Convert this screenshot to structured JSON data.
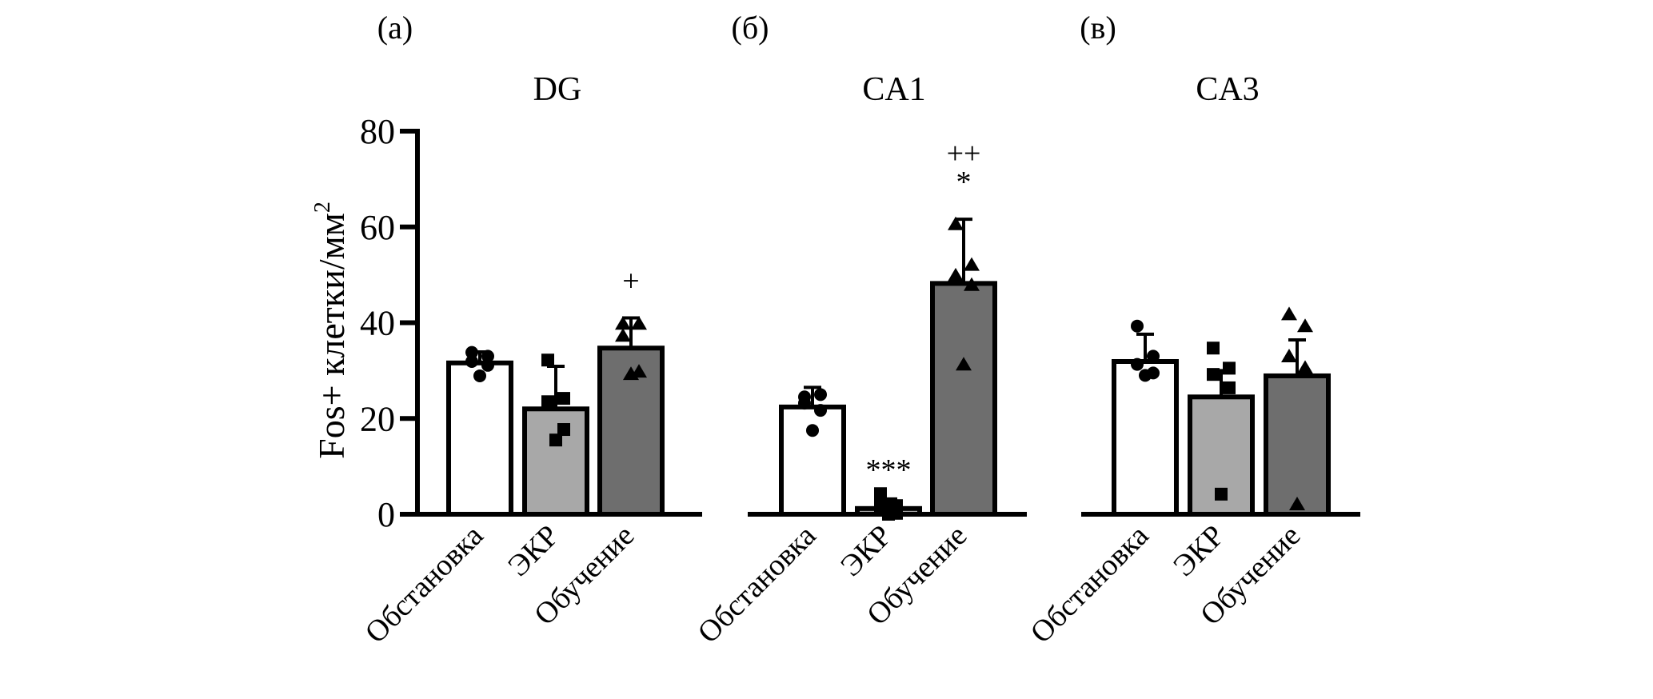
{
  "chart_data": {
    "type": "bar",
    "ylabel": "Fos+ клетки/мм²",
    "ylabel_main": "Fos+ клетки/мм",
    "ylabel_sup": "2",
    "ylim": [
      0,
      80
    ],
    "yticks": [
      0,
      20,
      40,
      60,
      80
    ],
    "categories": [
      "Обстановка",
      "ЭКР",
      "Обучение"
    ],
    "bar_colors": [
      "#ffffff",
      "#a8a8a8",
      "#6e6e6e"
    ],
    "point_markers": [
      "circle",
      "square",
      "triangle"
    ],
    "panels": [
      {
        "letter": "(а)",
        "title": "DG",
        "values": [
          31.6,
          22.0,
          34.7
        ],
        "error_upper": [
          33.9,
          30.9,
          41.0
        ],
        "points": [
          [
            33.8,
            33.0,
            31.9,
            31.1,
            28.9
          ],
          [
            32.2,
            24.2,
            23.5,
            17.7,
            15.5
          ],
          [
            39.7,
            39.7,
            37.2,
            29.7,
            29.2
          ]
        ],
        "significance": [
          "",
          "",
          "+"
        ]
      },
      {
        "letter": "(б)",
        "title": "CA1",
        "values": [
          22.4,
          1.2,
          48.2
        ],
        "error_upper": [
          26.5,
          3.2,
          61.6
        ],
        "points": [
          [
            24.5,
            25.0,
            23.2,
            21.7,
            17.5
          ],
          [
            4.3,
            1.8,
            1.8,
            0.2,
            0.0
          ],
          [
            60.5,
            52.0,
            49.8,
            47.8,
            31.2
          ]
        ],
        "significance": [
          "",
          "***",
          "*"
        ],
        "significance_extra": [
          "",
          "",
          "++"
        ]
      },
      {
        "letter": "(в)",
        "title": "CA3",
        "values": [
          31.9,
          24.5,
          28.9
        ],
        "error_upper": [
          37.6,
          30.0,
          36.4
        ],
        "points": [
          [
            39.3,
            33.0,
            31.3,
            29.5,
            29.0
          ],
          [
            34.7,
            30.5,
            29.2,
            26.4,
            4.2
          ],
          [
            41.7,
            39.2,
            32.9,
            30.5,
            2.0
          ]
        ],
        "significance": [
          "",
          "",
          ""
        ]
      }
    ]
  }
}
